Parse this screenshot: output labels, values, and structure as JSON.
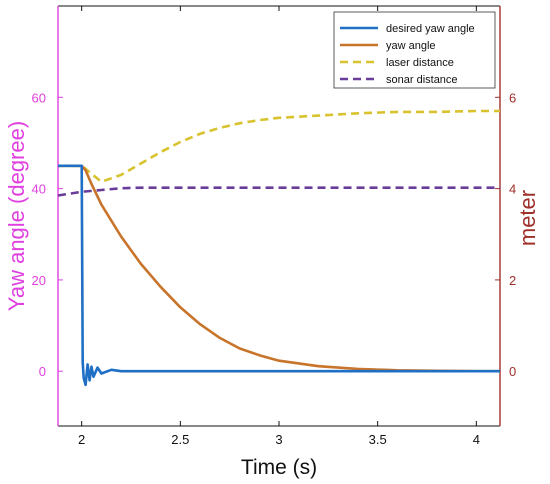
{
  "chart_data": {
    "type": "line",
    "xlabel": "Time (s)",
    "ylabel_left": "Yaw angle (degree)",
    "ylabel_right": "meter",
    "xlim": [
      1.88,
      4.12
    ],
    "ylim_left": [
      -12,
      80
    ],
    "ylim_right": [
      -1.2,
      8.0
    ],
    "x_ticks": [
      2,
      2.5,
      3,
      3.5,
      4
    ],
    "x_tick_labels": [
      "2",
      "2.5",
      "3",
      "3.5",
      "4"
    ],
    "y_left_ticks": [
      0,
      20,
      40,
      60
    ],
    "y_left_tick_labels": [
      "0",
      "20",
      "40",
      "60"
    ],
    "y_right_ticks": [
      0,
      2,
      4,
      6
    ],
    "y_right_tick_labels": [
      "0",
      "2",
      "4",
      "6"
    ],
    "grid": false,
    "legend_position": "top-right",
    "colors": {
      "left_axis": "#e040e0",
      "right_axis": "#a0302a",
      "x_axis": "#111111"
    },
    "series": [
      {
        "name": "desired yaw angle",
        "axis": "left",
        "style": "solid",
        "color": "#1f6fc5",
        "x": [
          1.88,
          2.0,
          2.005,
          2.01,
          2.02,
          2.03,
          2.04,
          2.05,
          2.06,
          2.08,
          2.1,
          2.15,
          2.2,
          2.5,
          3.0,
          3.5,
          4.0,
          4.12
        ],
        "y": [
          45,
          45,
          2,
          -1.5,
          -3,
          1.5,
          -2,
          1,
          -1.2,
          0.8,
          -0.5,
          0.3,
          0,
          0,
          0,
          0,
          0,
          0
        ]
      },
      {
        "name": "yaw angle",
        "axis": "left",
        "style": "solid",
        "color": "#c8742a",
        "x": [
          1.88,
          2.0,
          2.02,
          2.05,
          2.1,
          2.2,
          2.3,
          2.4,
          2.5,
          2.6,
          2.7,
          2.8,
          2.9,
          3.0,
          3.2,
          3.4,
          3.6,
          3.8,
          4.0,
          4.12
        ],
        "y": [
          45,
          45,
          44,
          41,
          36.5,
          29.5,
          23.5,
          18.5,
          14,
          10.3,
          7.3,
          5.0,
          3.5,
          2.3,
          1.1,
          0.5,
          0.2,
          0.1,
          0.0,
          0.0
        ]
      },
      {
        "name": "laser distance",
        "axis": "right",
        "style": "dashed",
        "color": "#d8c22e",
        "x": [
          1.88,
          2.0,
          2.1,
          2.2,
          2.3,
          2.4,
          2.5,
          2.6,
          2.7,
          2.8,
          2.9,
          3.0,
          3.2,
          3.4,
          3.6,
          3.8,
          4.0,
          4.12
        ],
        "y": [
          4.5,
          4.5,
          4.15,
          4.3,
          4.55,
          4.8,
          5.02,
          5.2,
          5.33,
          5.43,
          5.5,
          5.55,
          5.6,
          5.65,
          5.68,
          5.68,
          5.7,
          5.7
        ]
      },
      {
        "name": "sonar distance",
        "axis": "right",
        "style": "dashed",
        "color": "#6a3d9a",
        "x": [
          1.88,
          2.0,
          2.1,
          2.2,
          2.3,
          2.5,
          3.0,
          3.5,
          4.0,
          4.12
        ],
        "y": [
          3.85,
          3.93,
          3.97,
          4.01,
          4.02,
          4.02,
          4.02,
          4.02,
          4.02,
          4.02
        ]
      }
    ]
  }
}
